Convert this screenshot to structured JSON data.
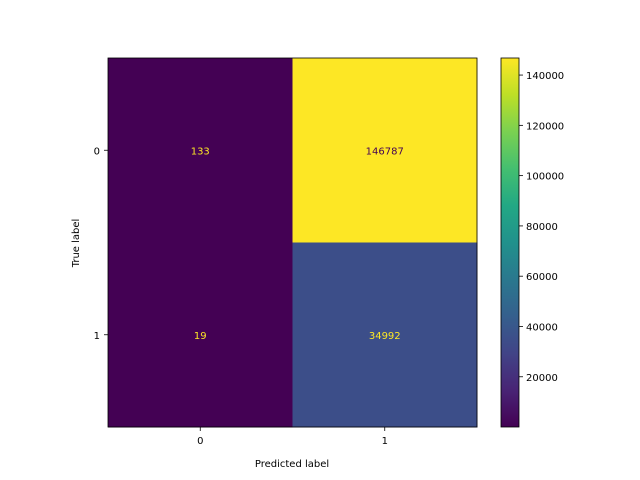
{
  "chart_data": {
    "type": "heatmap",
    "subtype": "confusion-matrix",
    "xlabel": "Predicted label",
    "ylabel": "True label",
    "x_categories": [
      "0",
      "1"
    ],
    "y_categories": [
      "0",
      "1"
    ],
    "values": [
      [
        133,
        146787
      ],
      [
        19,
        34992
      ]
    ],
    "cell_labels": [
      [
        "133",
        "146787"
      ],
      [
        "19",
        "34992"
      ]
    ],
    "colormap": "viridis",
    "color_range": [
      19,
      146787
    ],
    "colorbar_ticks": [
      20000,
      40000,
      60000,
      80000,
      100000,
      120000,
      140000
    ],
    "colorbar_tick_labels": [
      "20000",
      "40000",
      "60000",
      "80000",
      "100000",
      "120000",
      "140000"
    ],
    "text_colors": {
      "light": "#fde725",
      "dark": "#440154"
    }
  }
}
